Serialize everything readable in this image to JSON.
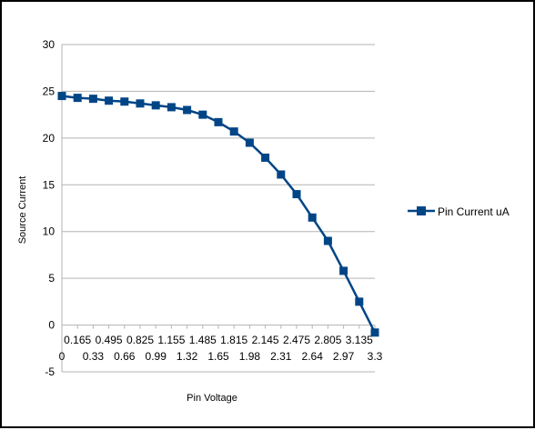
{
  "chart_data": {
    "type": "line",
    "title": "",
    "xlabel": "Pin Voltage",
    "ylabel": "Source Current",
    "ylim": [
      -5,
      30
    ],
    "yticks": [
      "30",
      "25",
      "20",
      "15",
      "10",
      "5",
      "0",
      "-5"
    ],
    "x": [
      0,
      0.165,
      0.33,
      0.495,
      0.66,
      0.825,
      0.99,
      1.155,
      1.32,
      1.485,
      1.65,
      1.815,
      1.98,
      2.145,
      2.31,
      2.475,
      2.64,
      2.805,
      2.97,
      3.135,
      3.3
    ],
    "x_tick_labels_upper": [
      "0.165",
      "0.495",
      "0.825",
      "1.155",
      "1.485",
      "1.815",
      "2.145",
      "2.475",
      "2.805",
      "3.135"
    ],
    "x_tick_labels_lower": [
      "0",
      "0.33",
      "0.66",
      "0.99",
      "1.32",
      "1.65",
      "1.98",
      "2.31",
      "2.64",
      "2.97",
      "3.3"
    ],
    "series": [
      {
        "name": "Pin Current uA",
        "color": "#004586",
        "marker": "square",
        "values": [
          24.5,
          24.3,
          24.2,
          24.0,
          23.9,
          23.7,
          23.5,
          23.3,
          23.0,
          22.5,
          21.7,
          20.7,
          19.5,
          17.9,
          16.1,
          14.0,
          11.5,
          9.0,
          5.8,
          2.5,
          -0.8
        ]
      }
    ],
    "grid": true,
    "legend": "right"
  }
}
